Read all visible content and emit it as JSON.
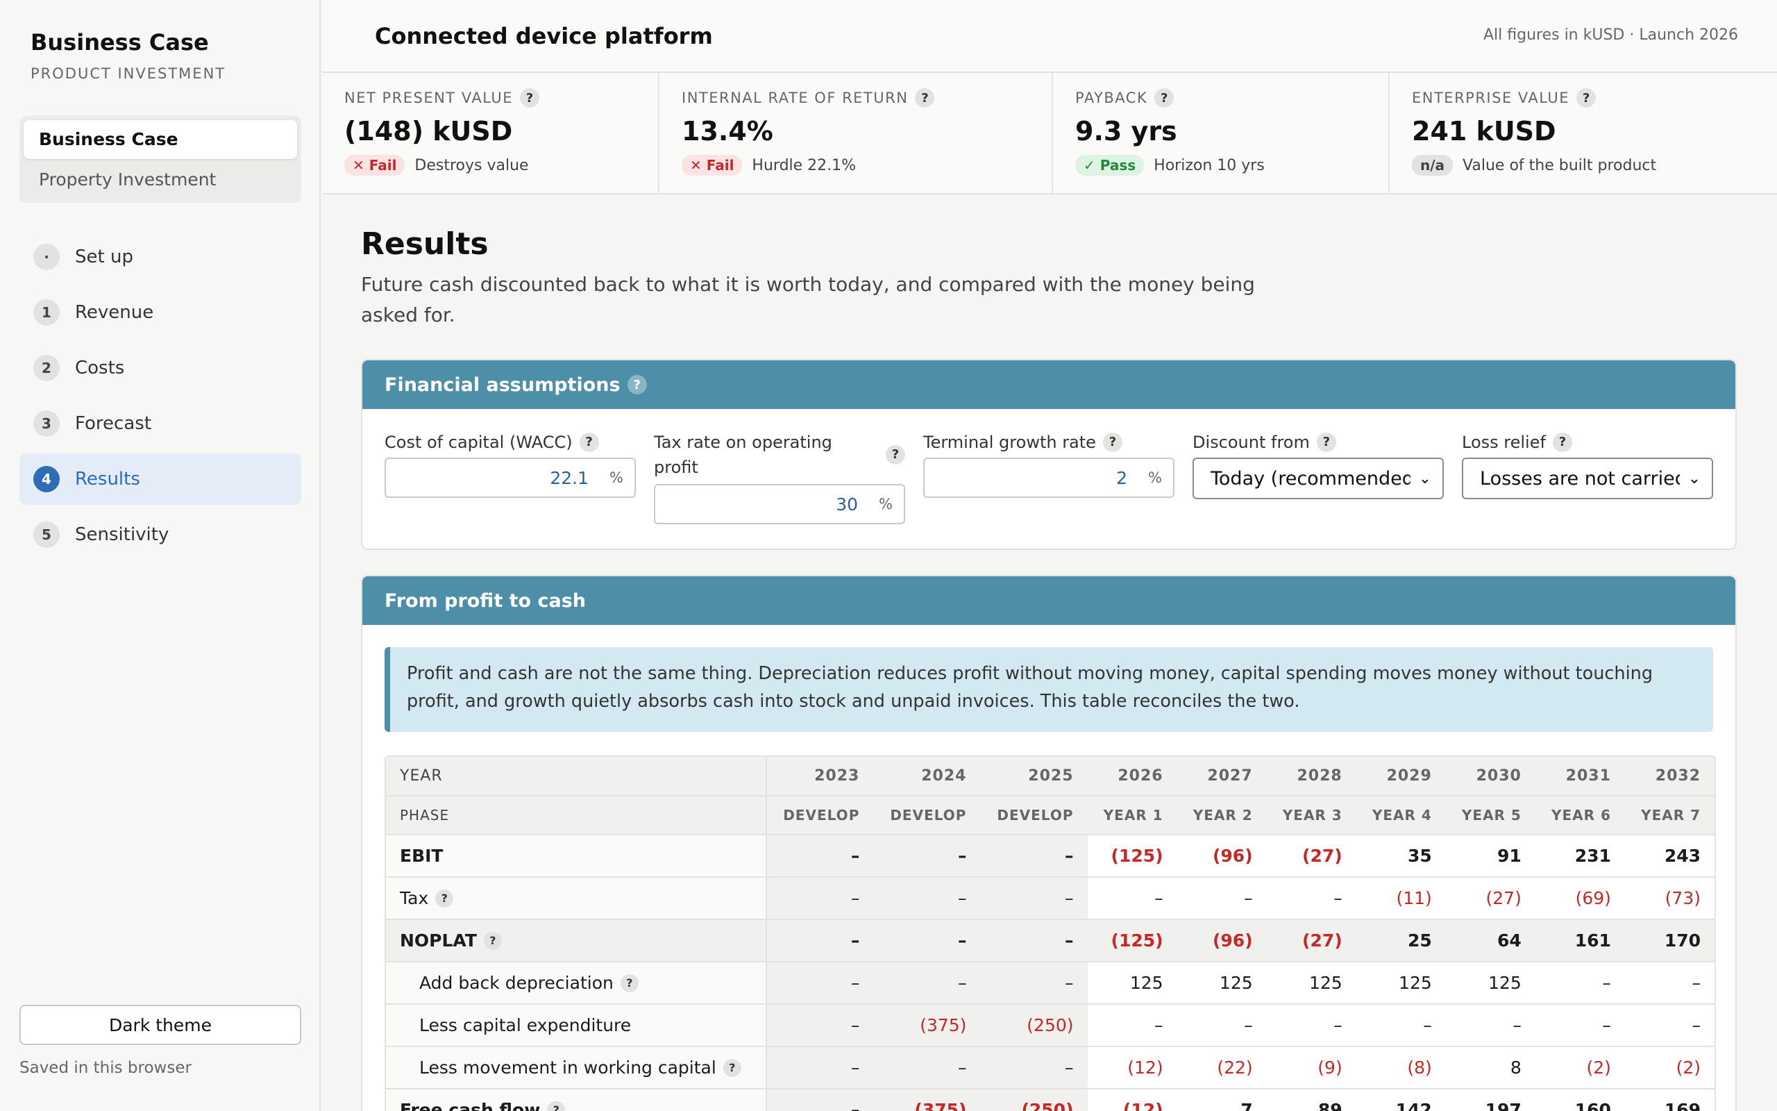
{
  "sidebar": {
    "brand_title": "Business Case",
    "brand_subtitle": "PRODUCT INVESTMENT",
    "switcher": [
      "Business Case",
      "Property Investment"
    ],
    "nav": [
      {
        "num": "·",
        "label": "Set up"
      },
      {
        "num": "1",
        "label": "Revenue"
      },
      {
        "num": "2",
        "label": "Costs"
      },
      {
        "num": "3",
        "label": "Forecast"
      },
      {
        "num": "4",
        "label": "Results"
      },
      {
        "num": "5",
        "label": "Sensitivity"
      }
    ],
    "active_nav": "Results",
    "theme_button": "Dark theme",
    "saved_note": "Saved in this browser"
  },
  "header": {
    "title": "Connected device platform",
    "note": "All figures in kUSD · Launch 2026"
  },
  "kpis": [
    {
      "label": "NET PRESENT VALUE",
      "value": "(148) kUSD",
      "badge": "✕ Fail",
      "status": "fail",
      "note": "Destroys value"
    },
    {
      "label": "INTERNAL RATE OF RETURN",
      "value": "13.4%",
      "badge": "✕ Fail",
      "status": "fail",
      "note": "Hurdle 22.1%"
    },
    {
      "label": "PAYBACK",
      "value": "9.3 yrs",
      "badge": "✓ Pass",
      "status": "pass",
      "note": "Horizon 10 yrs"
    },
    {
      "label": "ENTERPRISE VALUE",
      "value": "241 kUSD",
      "badge": "n/a",
      "status": "na",
      "note": "Value of the built product"
    }
  ],
  "help_glyph": "?",
  "results": {
    "title": "Results",
    "description": "Future cash discounted back to what it is worth today, and compared with the money being asked for."
  },
  "assumptions": {
    "title": "Financial assumptions",
    "wacc": {
      "label": "Cost of capital (WACC)",
      "value": "22.1",
      "unit": "%"
    },
    "tax": {
      "label": "Tax rate on operating profit",
      "value": "30",
      "unit": "%"
    },
    "growth": {
      "label": "Terminal growth rate",
      "value": "2",
      "unit": "%"
    },
    "discount": {
      "label": "Discount from",
      "value": "Today (recommended)"
    },
    "loss": {
      "label": "Loss relief",
      "value": "Losses are not carried forward"
    }
  },
  "profit": {
    "title": "From profit to cash",
    "callout": "Profit and cash are not the same thing. Depreciation reduces profit without moving money, capital spending moves money without touching profit, and growth quietly absorbs cash into stock and unpaid invoices. This table reconciles the two.",
    "year_label": "YEAR",
    "phase_label": "PHASE",
    "years": [
      "2023",
      "2024",
      "2025",
      "2026",
      "2027",
      "2028",
      "2029",
      "2030",
      "2031",
      "2032"
    ],
    "phases": [
      "DEVELOP",
      "DEVELOP",
      "DEVELOP",
      "YEAR 1",
      "YEAR 2",
      "YEAR 3",
      "YEAR 4",
      "YEAR 5",
      "YEAR 6",
      "YEAR 7"
    ],
    "rows": [
      {
        "label": "EBIT",
        "help": false,
        "style": "bold",
        "values": [
          "–",
          "–",
          "–",
          "(125)",
          "(96)",
          "(27)",
          "35",
          "91",
          "231",
          "243"
        ]
      },
      {
        "label": "Tax",
        "help": true,
        "style": "",
        "values": [
          "–",
          "–",
          "–",
          "–",
          "–",
          "–",
          "(11)",
          "(27)",
          "(69)",
          "(73)"
        ]
      },
      {
        "label": "NOPLAT",
        "help": true,
        "style": "bold shade",
        "values": [
          "–",
          "–",
          "–",
          "(125)",
          "(96)",
          "(27)",
          "25",
          "64",
          "161",
          "170"
        ]
      },
      {
        "label": "Add back depreciation",
        "help": true,
        "style": "sub",
        "values": [
          "–",
          "–",
          "–",
          "125",
          "125",
          "125",
          "125",
          "125",
          "–",
          "–"
        ]
      },
      {
        "label": "Less capital expenditure",
        "help": false,
        "style": "sub",
        "values": [
          "–",
          "(375)",
          "(250)",
          "–",
          "–",
          "–",
          "–",
          "–",
          "–",
          "–"
        ]
      },
      {
        "label": "Less movement in working capital",
        "help": true,
        "style": "sub",
        "values": [
          "–",
          "–",
          "–",
          "(12)",
          "(22)",
          "(9)",
          "(8)",
          "8",
          "(2)",
          "(2)"
        ]
      },
      {
        "label": "Free cash flow",
        "help": true,
        "style": "bold",
        "values": [
          "–",
          "(375)",
          "(250)",
          "(12)",
          "7",
          "89",
          "142",
          "197",
          "160",
          "169"
        ]
      }
    ]
  }
}
